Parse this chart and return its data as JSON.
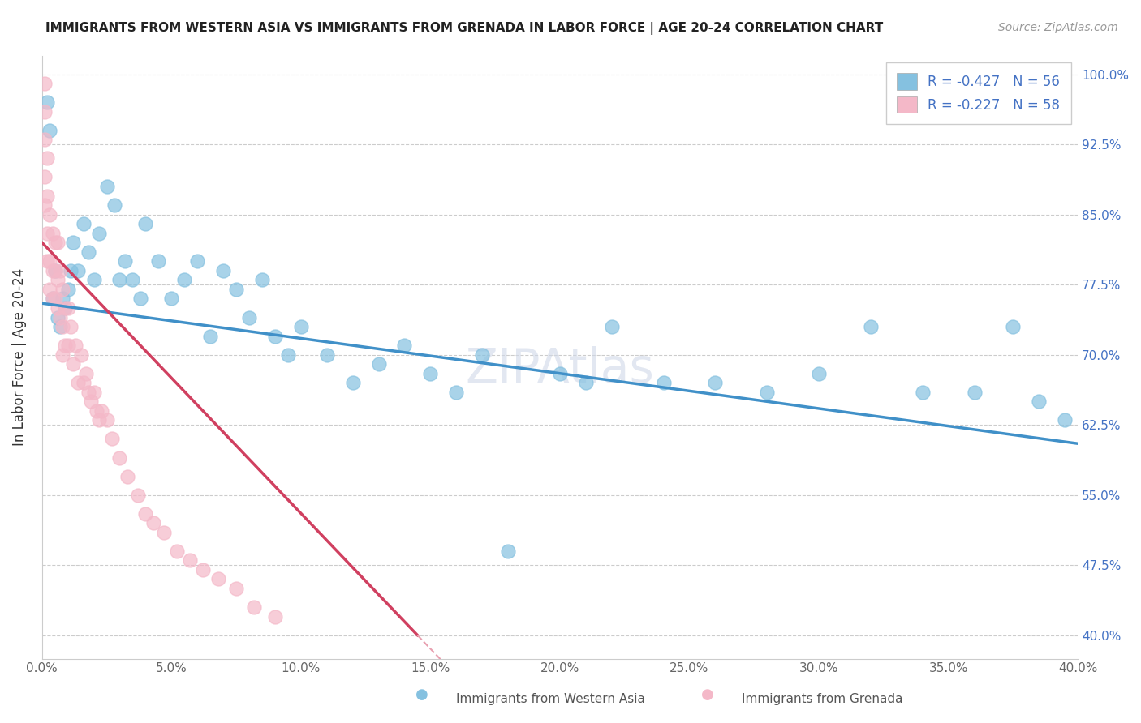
{
  "title": "IMMIGRANTS FROM WESTERN ASIA VS IMMIGRANTS FROM GRENADA IN LABOR FORCE | AGE 20-24 CORRELATION CHART",
  "source": "Source: ZipAtlas.com",
  "ylabel": "In Labor Force | Age 20-24",
  "xlim": [
    0.0,
    0.4
  ],
  "ylim": [
    0.375,
    1.02
  ],
  "xticks": [
    0.0,
    0.05,
    0.1,
    0.15,
    0.2,
    0.25,
    0.3,
    0.35,
    0.4
  ],
  "yticks": [
    0.4,
    0.475,
    0.55,
    0.625,
    0.7,
    0.775,
    0.85,
    0.925,
    1.0
  ],
  "ytick_labels_right": [
    "40.0%",
    "47.5%",
    "55.0%",
    "62.5%",
    "70.0%",
    "77.5%",
    "85.0%",
    "92.5%",
    "100.0%"
  ],
  "xtick_labels": [
    "0.0%",
    "5.0%",
    "10.0%",
    "15.0%",
    "20.0%",
    "25.0%",
    "30.0%",
    "35.0%",
    "40.0%"
  ],
  "legend1_label": "R = -0.427   N = 56",
  "legend2_label": "R = -0.227   N = 58",
  "blue_color": "#85c1e0",
  "pink_color": "#f4b8c8",
  "blue_line_color": "#4090c8",
  "pink_line_color": "#d04060",
  "pink_line_dashed_color": "#e8a0b0",
  "watermark": "ZIPAtlas",
  "legend_bottom_label1": "Immigrants from Western Asia",
  "legend_bottom_label2": "Immigrants from Grenada",
  "blue_R": -0.427,
  "blue_N": 56,
  "pink_R": -0.227,
  "pink_N": 58,
  "blue_trend_x0": 0.0,
  "blue_trend_y0": 0.755,
  "blue_trend_x1": 0.4,
  "blue_trend_y1": 0.605,
  "pink_trend_x0": 0.0,
  "pink_trend_y0": 0.82,
  "pink_trend_x1": 0.145,
  "pink_trend_y1": 0.4,
  "blue_points_x": [
    0.002,
    0.003,
    0.004,
    0.005,
    0.006,
    0.007,
    0.008,
    0.009,
    0.01,
    0.011,
    0.012,
    0.014,
    0.016,
    0.018,
    0.02,
    0.022,
    0.025,
    0.028,
    0.03,
    0.032,
    0.035,
    0.038,
    0.04,
    0.045,
    0.05,
    0.055,
    0.06,
    0.065,
    0.07,
    0.075,
    0.08,
    0.085,
    0.09,
    0.095,
    0.1,
    0.11,
    0.12,
    0.13,
    0.14,
    0.15,
    0.16,
    0.17,
    0.18,
    0.2,
    0.21,
    0.22,
    0.24,
    0.26,
    0.28,
    0.3,
    0.32,
    0.34,
    0.36,
    0.375,
    0.385,
    0.395
  ],
  "blue_points_y": [
    0.97,
    0.94,
    0.76,
    0.79,
    0.74,
    0.73,
    0.76,
    0.75,
    0.77,
    0.79,
    0.82,
    0.79,
    0.84,
    0.81,
    0.78,
    0.83,
    0.88,
    0.86,
    0.78,
    0.8,
    0.78,
    0.76,
    0.84,
    0.8,
    0.76,
    0.78,
    0.8,
    0.72,
    0.79,
    0.77,
    0.74,
    0.78,
    0.72,
    0.7,
    0.73,
    0.7,
    0.67,
    0.69,
    0.71,
    0.68,
    0.66,
    0.7,
    0.49,
    0.68,
    0.67,
    0.73,
    0.67,
    0.67,
    0.66,
    0.68,
    0.73,
    0.66,
    0.66,
    0.73,
    0.65,
    0.63
  ],
  "pink_points_x": [
    0.001,
    0.001,
    0.001,
    0.001,
    0.001,
    0.002,
    0.002,
    0.002,
    0.002,
    0.003,
    0.003,
    0.003,
    0.004,
    0.004,
    0.004,
    0.005,
    0.005,
    0.005,
    0.006,
    0.006,
    0.006,
    0.007,
    0.007,
    0.008,
    0.008,
    0.008,
    0.009,
    0.009,
    0.01,
    0.01,
    0.011,
    0.012,
    0.013,
    0.014,
    0.015,
    0.016,
    0.017,
    0.018,
    0.019,
    0.02,
    0.021,
    0.022,
    0.023,
    0.025,
    0.027,
    0.03,
    0.033,
    0.037,
    0.04,
    0.043,
    0.047,
    0.052,
    0.057,
    0.062,
    0.068,
    0.075,
    0.082,
    0.09
  ],
  "pink_points_y": [
    0.99,
    0.96,
    0.93,
    0.89,
    0.86,
    0.91,
    0.87,
    0.83,
    0.8,
    0.85,
    0.8,
    0.77,
    0.83,
    0.79,
    0.76,
    0.82,
    0.79,
    0.76,
    0.82,
    0.78,
    0.75,
    0.79,
    0.74,
    0.77,
    0.73,
    0.7,
    0.75,
    0.71,
    0.75,
    0.71,
    0.73,
    0.69,
    0.71,
    0.67,
    0.7,
    0.67,
    0.68,
    0.66,
    0.65,
    0.66,
    0.64,
    0.63,
    0.64,
    0.63,
    0.61,
    0.59,
    0.57,
    0.55,
    0.53,
    0.52,
    0.51,
    0.49,
    0.48,
    0.47,
    0.46,
    0.45,
    0.43,
    0.42
  ]
}
